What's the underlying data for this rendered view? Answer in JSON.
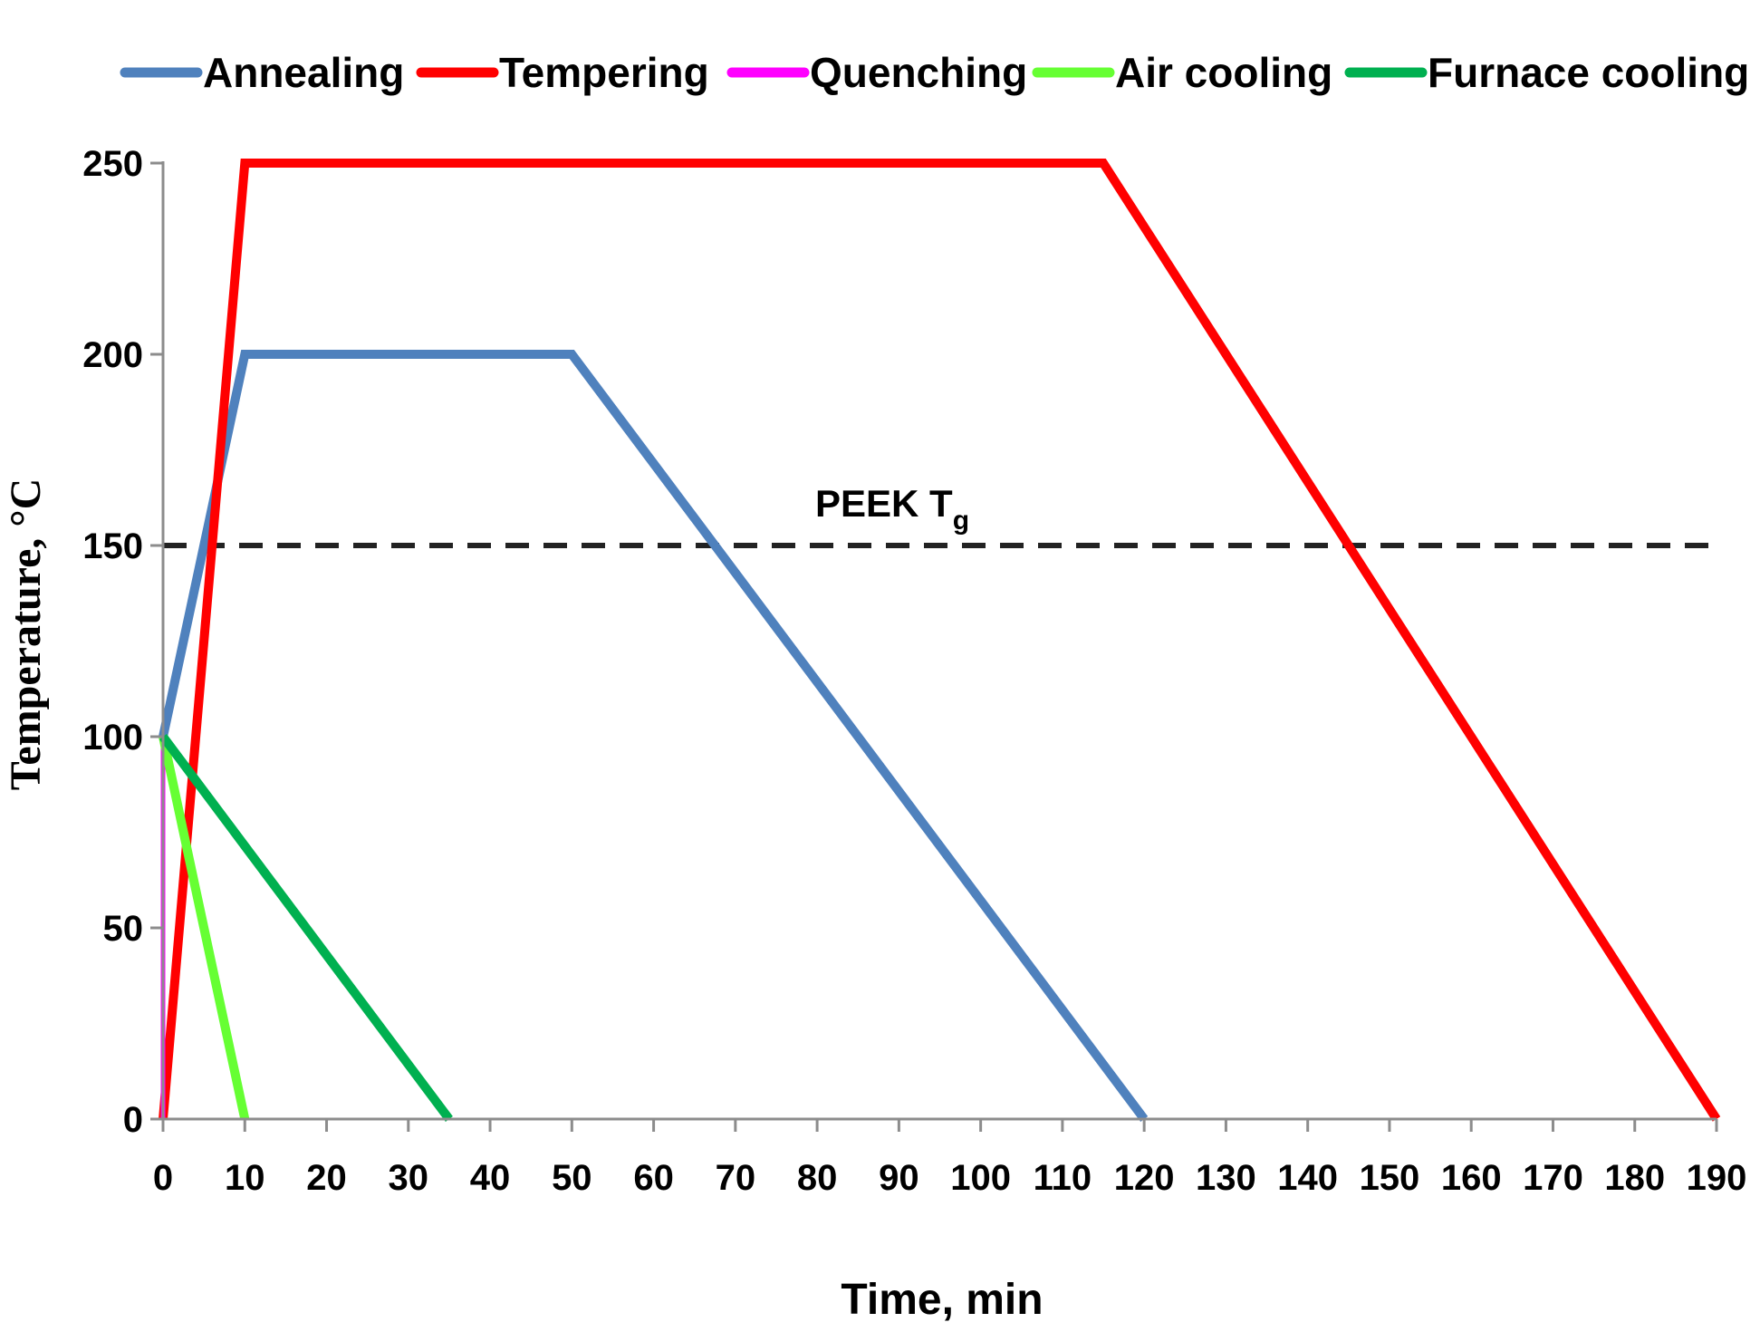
{
  "chart_data": {
    "type": "line",
    "title": "",
    "xlabel": "Time, min",
    "ylabel": "Temperature, °C",
    "xlim": [
      0,
      190
    ],
    "ylim": [
      0,
      250
    ],
    "x_ticks": [
      0,
      10,
      20,
      30,
      40,
      50,
      60,
      70,
      80,
      90,
      100,
      110,
      120,
      130,
      140,
      150,
      160,
      170,
      180,
      190
    ],
    "y_ticks": [
      0,
      50,
      100,
      150,
      200,
      250
    ],
    "grid": false,
    "legend_position": "top",
    "series": [
      {
        "name": "Annealing",
        "color": "#4f81bd",
        "points": [
          [
            0,
            100
          ],
          [
            10,
            200
          ],
          [
            50,
            200
          ],
          [
            120,
            0
          ]
        ]
      },
      {
        "name": "Tempering",
        "color": "#ff0000",
        "points": [
          [
            0,
            0
          ],
          [
            10,
            250
          ],
          [
            115,
            250
          ],
          [
            190,
            0
          ]
        ]
      },
      {
        "name": "Quenching",
        "color": "#ff00ff",
        "points": [
          [
            0,
            100
          ],
          [
            0,
            0
          ]
        ]
      },
      {
        "name": "Air cooling",
        "color": "#66ff33",
        "points": [
          [
            0,
            100
          ],
          [
            10,
            0
          ]
        ]
      },
      {
        "name": "Furnace cooling",
        "color": "#00b050",
        "points": [
          [
            0,
            100
          ],
          [
            35,
            0
          ]
        ]
      }
    ],
    "reference_line": {
      "y": 150,
      "label_main": "PEEK T",
      "label_sub": "g",
      "color": "#222222",
      "style": "dashed"
    }
  }
}
